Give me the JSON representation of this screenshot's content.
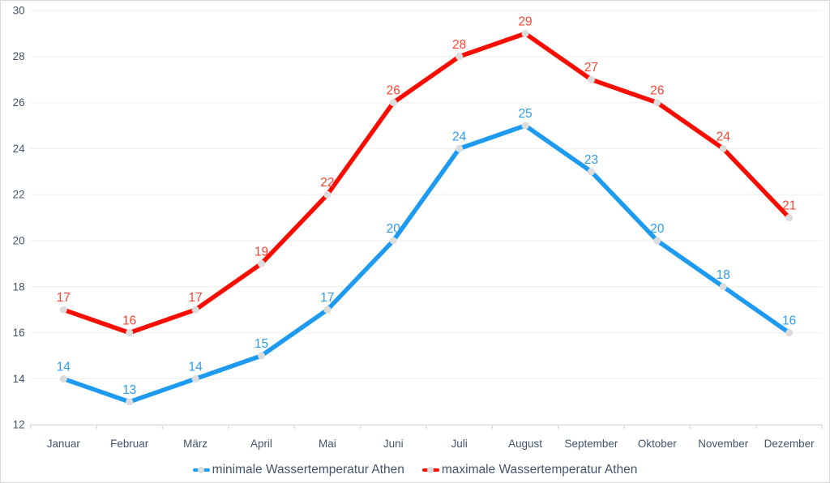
{
  "chart_data": {
    "type": "line",
    "title": "",
    "xlabel": "",
    "ylabel": "",
    "categories": [
      "Januar",
      "Februar",
      "März",
      "April",
      "Mai",
      "Juni",
      "Juli",
      "August",
      "September",
      "Oktober",
      "November",
      "Dezember"
    ],
    "series": [
      {
        "name": "minimale Wassertemperatur Athen",
        "values": [
          14,
          13,
          14,
          15,
          17,
          20,
          24,
          25,
          23,
          20,
          18,
          16
        ],
        "color": "#1E9BF0",
        "label_color": "#2B9CF2"
      },
      {
        "name": "maximale Wassertemperatur Athen",
        "values": [
          17,
          16,
          17,
          19,
          22,
          26,
          28,
          29,
          27,
          26,
          24,
          21
        ],
        "color": "#F90D00",
        "label_color": "#FF4333"
      }
    ],
    "ylim": [
      12,
      30
    ],
    "yticks": [
      30,
      28,
      26,
      24,
      22,
      20,
      18,
      16,
      14,
      12
    ],
    "grid": true,
    "show_data_labels": true,
    "legend_position": "bottom",
    "marker_color": "#DCDCDC",
    "colors": {
      "axis_text": "#44546A",
      "gridline": "#F1F1F1",
      "axis_line": "#D9D9D9",
      "border": "#D9D9D9",
      "background": "#FFFFFF"
    }
  }
}
